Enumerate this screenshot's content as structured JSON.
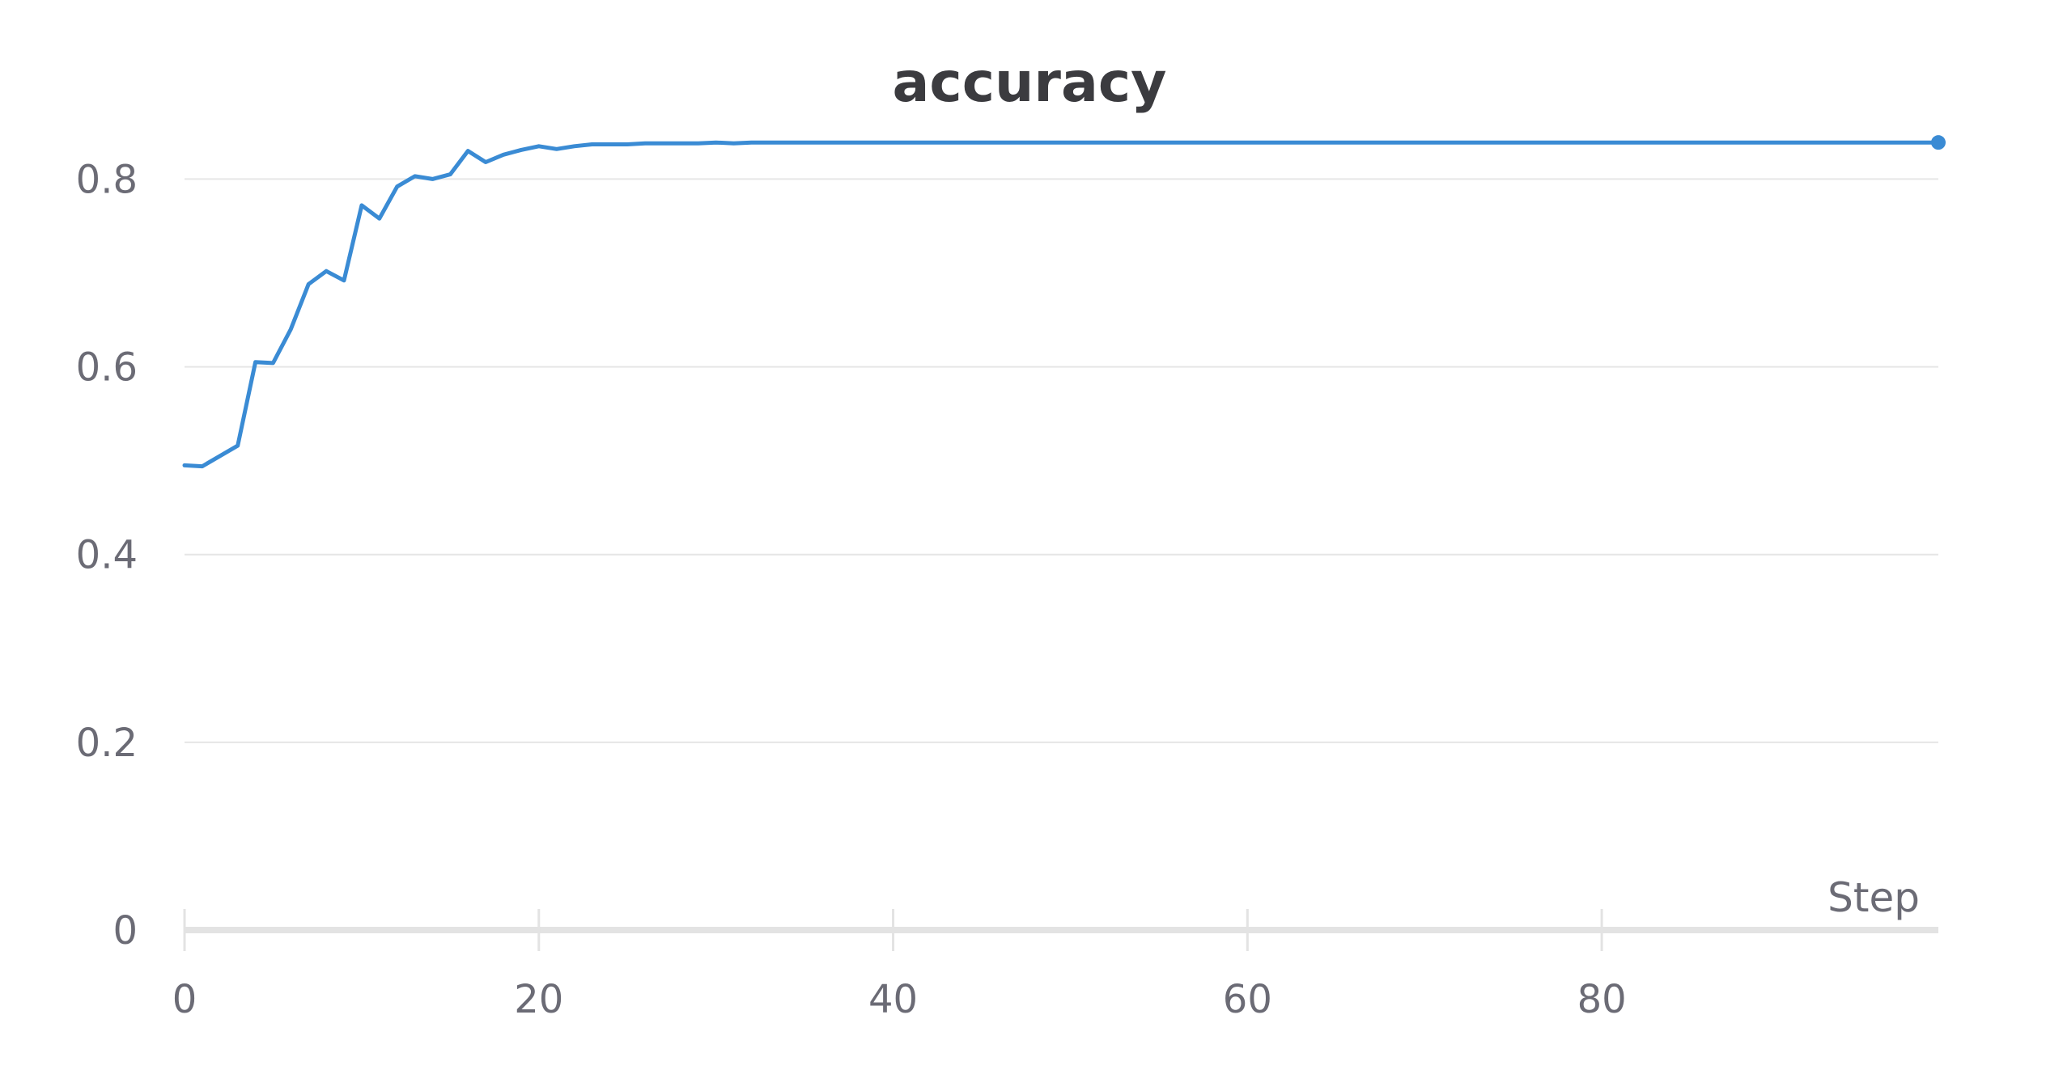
{
  "chart_data": {
    "type": "line",
    "title": "accuracy",
    "xlabel": "Step",
    "ylabel": "",
    "xlim": [
      0,
      99
    ],
    "ylim": [
      0,
      0.84
    ],
    "x_ticks": [
      "0",
      "20",
      "40",
      "60",
      "80"
    ],
    "x_tick_values": [
      0,
      20,
      40,
      60,
      80
    ],
    "y_ticks": [
      "0",
      "0.2",
      "0.4",
      "0.6",
      "0.8"
    ],
    "y_tick_values": [
      0,
      0.2,
      0.4,
      0.6,
      0.8
    ],
    "grid": true,
    "legend": "none",
    "colors": {
      "series": "#3a8bd4",
      "grid": "#e6e6e6",
      "axis": "#e3e3e3",
      "text": "#6b6b75",
      "title": "#3b3b3f"
    },
    "series": [
      {
        "x": [
          0,
          1,
          2,
          3,
          4,
          5,
          6,
          7,
          8,
          9,
          10,
          11,
          12,
          13,
          14,
          15,
          16,
          17,
          18,
          19,
          20,
          21,
          22,
          23,
          24,
          25,
          26,
          27,
          28,
          29,
          30,
          31,
          32,
          33,
          34,
          35,
          36,
          37,
          38,
          39,
          40,
          41,
          42,
          43,
          44,
          45,
          46,
          47,
          48,
          49,
          50,
          51,
          52,
          53,
          54,
          55,
          56,
          57,
          58,
          59,
          60,
          61,
          62,
          63,
          64,
          65,
          66,
          67,
          68,
          69,
          70,
          71,
          72,
          73,
          74,
          75,
          76,
          77,
          78,
          79,
          80,
          81,
          82,
          83,
          84,
          85,
          86,
          87,
          88,
          89,
          90,
          91,
          92,
          93,
          94,
          95,
          96,
          97,
          98,
          99
        ],
        "values": [
          0.495,
          0.494,
          0.505,
          0.516,
          0.605,
          0.604,
          0.64,
          0.688,
          0.702,
          0.692,
          0.772,
          0.758,
          0.792,
          0.803,
          0.8,
          0.805,
          0.83,
          0.818,
          0.826,
          0.831,
          0.835,
          0.832,
          0.835,
          0.837,
          0.837,
          0.837,
          0.838,
          0.838,
          0.838,
          0.838,
          0.839,
          0.838,
          0.839,
          0.839,
          0.839,
          0.839,
          0.839,
          0.839,
          0.839,
          0.839,
          0.839,
          0.839,
          0.839,
          0.839,
          0.839,
          0.839,
          0.839,
          0.839,
          0.839,
          0.839,
          0.839,
          0.839,
          0.839,
          0.839,
          0.839,
          0.839,
          0.839,
          0.839,
          0.839,
          0.839,
          0.839,
          0.839,
          0.839,
          0.839,
          0.839,
          0.839,
          0.839,
          0.839,
          0.839,
          0.839,
          0.839,
          0.839,
          0.839,
          0.839,
          0.839,
          0.839,
          0.839,
          0.839,
          0.839,
          0.839,
          0.839,
          0.839,
          0.839,
          0.839,
          0.839,
          0.839,
          0.839,
          0.839,
          0.839,
          0.839,
          0.839,
          0.839,
          0.839,
          0.839,
          0.839,
          0.839,
          0.839,
          0.839,
          0.839,
          0.839
        ]
      }
    ]
  }
}
